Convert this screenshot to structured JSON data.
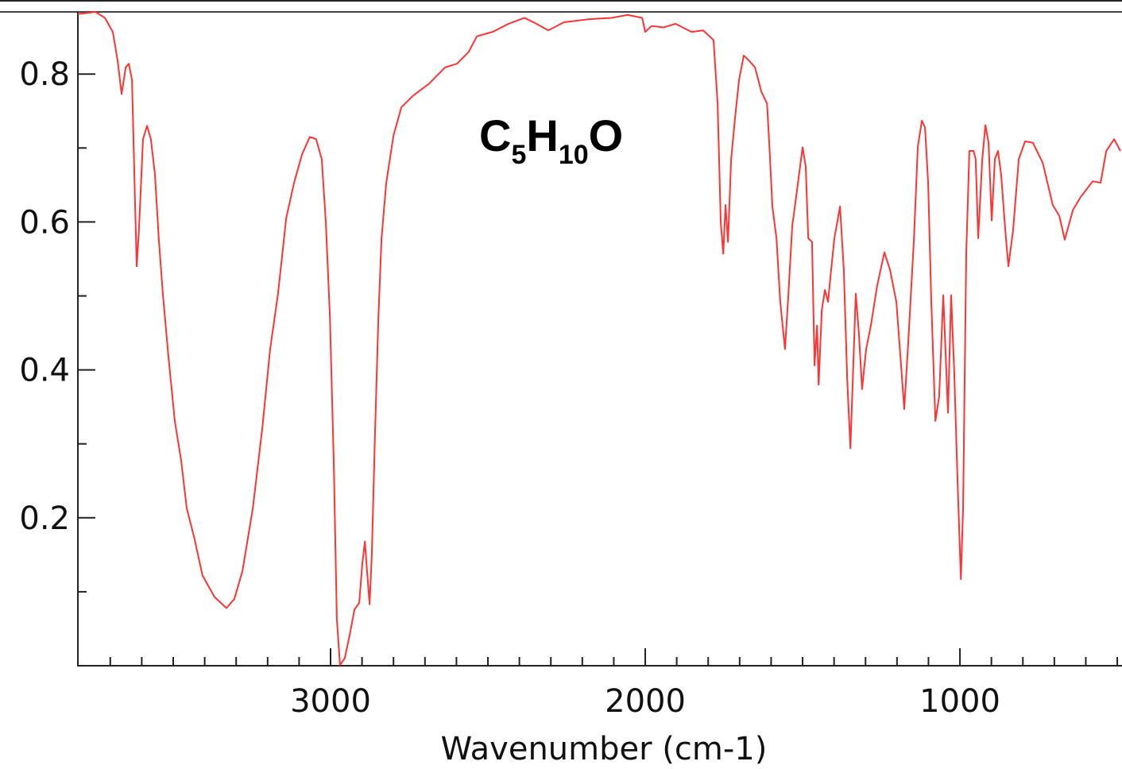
{
  "chart_data": {
    "type": "line",
    "title": [
      {
        "text": "C"
      },
      {
        "text": "5",
        "subscript": true
      },
      {
        "text": "H"
      },
      {
        "text": "10",
        "subscript": true
      },
      {
        "text": "O"
      }
    ],
    "x_label": "Wavenumber (cm-1)",
    "color": "#ff3333",
    "xlim": [
      3803,
      485
    ],
    "ylim": [
      0,
      0.884
    ],
    "xticks": [
      3000,
      2000,
      1000
    ],
    "yticks": [
      0.2,
      0.4,
      0.6,
      0.8
    ],
    "x_minor_ticks": [
      3700,
      3600,
      3500,
      3400,
      3300,
      3200,
      3100,
      2900,
      2800,
      2700,
      2600,
      2500,
      2400,
      2300,
      2200,
      2100,
      1900,
      1800,
      1700,
      1600,
      1500,
      1400,
      1300,
      1200,
      1100,
      900,
      800,
      700,
      600,
      500
    ],
    "y_minor_ticks": [
      0.1,
      0.3,
      0.5,
      0.7
    ],
    "x": [
      3803,
      3747,
      3717,
      3692,
      3677,
      3664,
      3651,
      3641,
      3631,
      3621,
      3616,
      3609,
      3596,
      3583,
      3571,
      3558,
      3546,
      3533,
      3515,
      3495,
      3475,
      3457,
      3432,
      3407,
      3369,
      3331,
      3306,
      3280,
      3247,
      3217,
      3192,
      3167,
      3141,
      3116,
      3091,
      3066,
      3046,
      3028,
      3015,
      3002,
      2990,
      2980,
      2970,
      2955,
      2939,
      2924,
      2909,
      2899,
      2891,
      2884,
      2876,
      2869,
      2859,
      2848,
      2838,
      2823,
      2800,
      2775,
      2737,
      2687,
      2636,
      2598,
      2561,
      2535,
      2485,
      2434,
      2384,
      2346,
      2308,
      2258,
      2182,
      2106,
      2056,
      2010,
      2000,
      1980,
      1942,
      1904,
      1853,
      1816,
      1783,
      1770,
      1760,
      1752,
      1745,
      1737,
      1727,
      1715,
      1702,
      1687,
      1672,
      1651,
      1631,
      1613,
      1606,
      1596,
      1583,
      1571,
      1556,
      1545,
      1533,
      1518,
      1500,
      1490,
      1482,
      1470,
      1462,
      1454,
      1449,
      1439,
      1429,
      1419,
      1412,
      1399,
      1381,
      1369,
      1358,
      1348,
      1338,
      1331,
      1321,
      1311,
      1298,
      1283,
      1263,
      1240,
      1222,
      1202,
      1187,
      1177,
      1164,
      1146,
      1134,
      1121,
      1111,
      1101,
      1091,
      1078,
      1066,
      1053,
      1046,
      1038,
      1028,
      1018,
      1008,
      997,
      990,
      980,
      970,
      957,
      950,
      942,
      929,
      919,
      909,
      899,
      889,
      879,
      869,
      856,
      846,
      831,
      813,
      793,
      768,
      737,
      705,
      684,
      667,
      641,
      616,
      578,
      553,
      535,
      510,
      490
    ],
    "values": [
      0.881,
      0.884,
      0.876,
      0.857,
      0.819,
      0.773,
      0.809,
      0.814,
      0.792,
      0.621,
      0.54,
      0.589,
      0.712,
      0.73,
      0.712,
      0.664,
      0.578,
      0.503,
      0.417,
      0.331,
      0.278,
      0.213,
      0.171,
      0.122,
      0.093,
      0.078,
      0.09,
      0.128,
      0.213,
      0.321,
      0.428,
      0.503,
      0.605,
      0.653,
      0.691,
      0.715,
      0.712,
      0.685,
      0.599,
      0.471,
      0.278,
      0.063,
      0.001,
      0.01,
      0.042,
      0.076,
      0.085,
      0.138,
      0.168,
      0.128,
      0.083,
      0.149,
      0.31,
      0.471,
      0.578,
      0.653,
      0.717,
      0.755,
      0.771,
      0.787,
      0.809,
      0.814,
      0.83,
      0.851,
      0.857,
      0.868,
      0.876,
      0.868,
      0.859,
      0.87,
      0.874,
      0.876,
      0.88,
      0.876,
      0.857,
      0.865,
      0.863,
      0.868,
      0.857,
      0.859,
      0.846,
      0.76,
      0.599,
      0.557,
      0.623,
      0.573,
      0.685,
      0.739,
      0.792,
      0.825,
      0.819,
      0.809,
      0.776,
      0.76,
      0.707,
      0.621,
      0.578,
      0.492,
      0.428,
      0.503,
      0.594,
      0.642,
      0.701,
      0.675,
      0.578,
      0.573,
      0.406,
      0.46,
      0.38,
      0.481,
      0.508,
      0.492,
      0.524,
      0.578,
      0.621,
      0.535,
      0.385,
      0.294,
      0.417,
      0.503,
      0.449,
      0.374,
      0.428,
      0.46,
      0.514,
      0.559,
      0.535,
      0.492,
      0.406,
      0.347,
      0.439,
      0.578,
      0.701,
      0.737,
      0.728,
      0.653,
      0.492,
      0.331,
      0.364,
      0.501,
      0.428,
      0.342,
      0.501,
      0.396,
      0.256,
      0.117,
      0.213,
      0.557,
      0.696,
      0.696,
      0.685,
      0.578,
      0.685,
      0.731,
      0.707,
      0.602,
      0.685,
      0.696,
      0.664,
      0.589,
      0.54,
      0.589,
      0.685,
      0.709,
      0.707,
      0.68,
      0.623,
      0.608,
      0.576,
      0.616,
      0.634,
      0.655,
      0.653,
      0.696,
      0.712,
      0.696
    ]
  }
}
